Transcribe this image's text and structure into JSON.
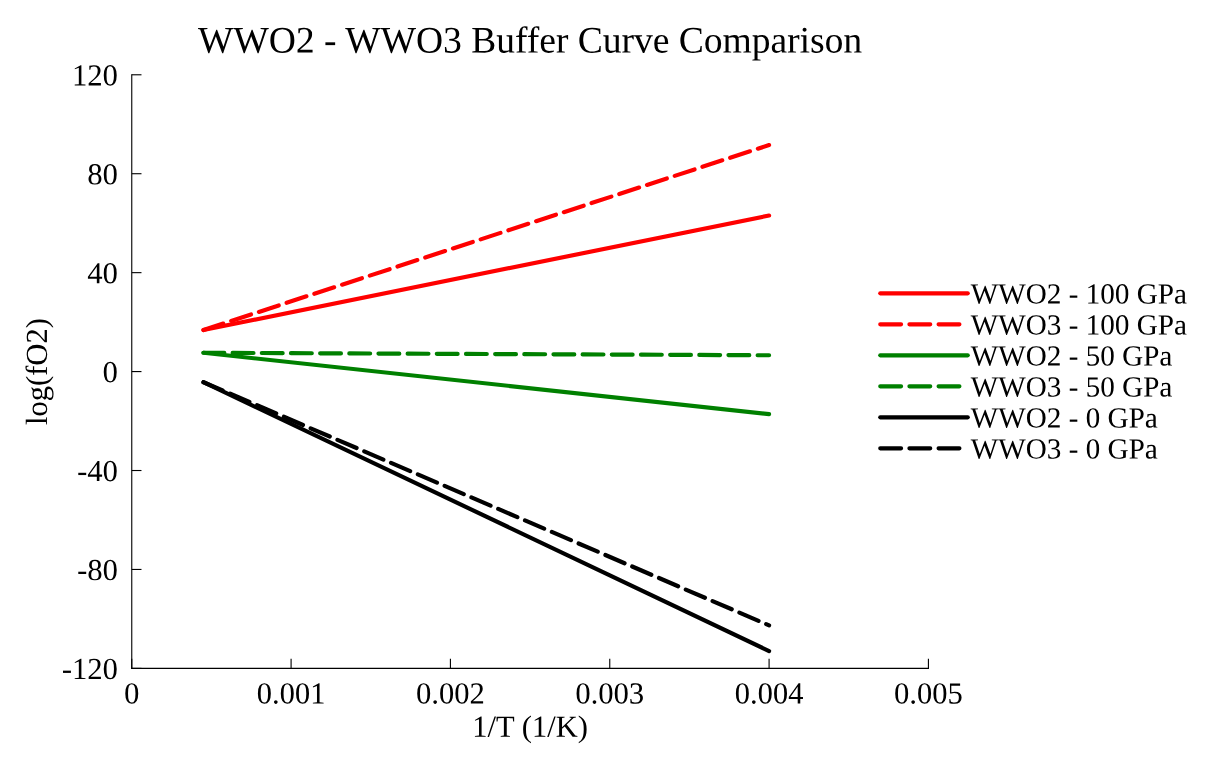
{
  "chart_data": {
    "type": "line",
    "title": "WWO2 - WWO3 Buffer Curve Comparison",
    "xlabel": "1/T (1/K)",
    "ylabel": "log(fO2)",
    "x": [
      0.00045,
      0.004
    ],
    "series": [
      {
        "name": "WWO2 - 100 GPa",
        "color": "#ff0000",
        "values": [
          16.8,
          63.1
        ],
        "line_style": "solid"
      },
      {
        "name": "WWO3 - 100 GPa",
        "color": "#ff0000",
        "values": [
          16.8,
          91.6
        ],
        "line_style": "dashed"
      },
      {
        "name": "WWO2 - 50 GPa",
        "color": "#008000",
        "values": [
          7.6,
          -17.2
        ],
        "line_style": "solid"
      },
      {
        "name": "WWO3 - 50 GPa",
        "color": "#008000",
        "values": [
          7.6,
          6.6
        ],
        "line_style": "dashed"
      },
      {
        "name": "WWO2 - 0 GPa",
        "color": "#000000",
        "values": [
          -4.3,
          -113.0
        ],
        "line_style": "solid"
      },
      {
        "name": "WWO3 - 0 GPa",
        "color": "#000000",
        "values": [
          -4.3,
          -102.6
        ],
        "line_style": "dashed"
      }
    ],
    "xlim": [
      0,
      0.005
    ],
    "xticks": [
      0,
      0.001,
      0.002,
      0.003,
      0.004,
      0.005
    ],
    "ylim": [
      -120,
      120
    ],
    "yticks": [
      -120,
      -80,
      -40,
      0,
      40,
      80,
      120
    ],
    "grid": false,
    "legend": "right",
    "marker": "none"
  }
}
